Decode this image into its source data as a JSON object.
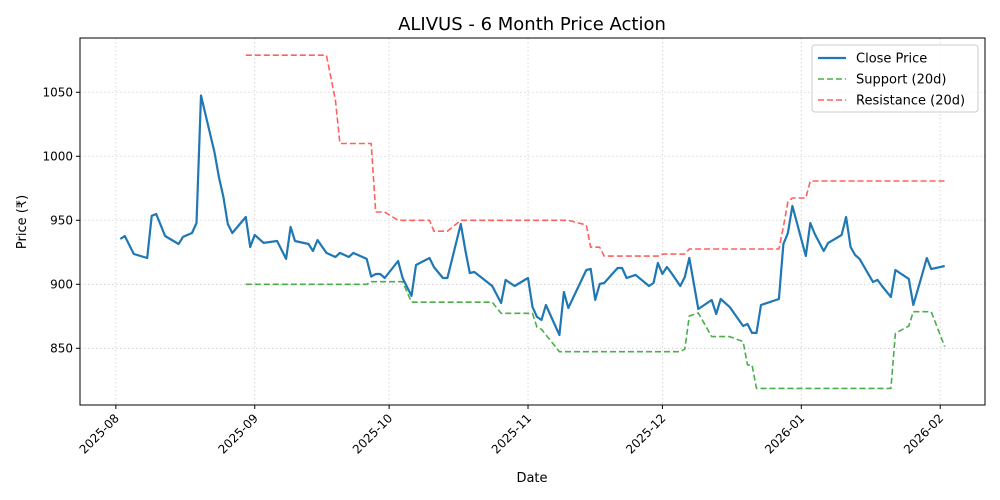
{
  "chart_data": {
    "type": "line",
    "title": "ALIVUS - 6 Month Price Action",
    "xlabel": "Date",
    "ylabel": "Price (₹)",
    "xlim": [
      "2025-07-24",
      "2026-02-11"
    ],
    "ylim": [
      805.7,
      1092.4
    ],
    "x_ticks": [
      "2025-08",
      "2025-09",
      "2025-10",
      "2025-11",
      "2025-12",
      "2026-01",
      "2026-02"
    ],
    "y_ticks": [
      850,
      900,
      950,
      1000,
      1050
    ],
    "grid": true,
    "legend_position": "top-right",
    "series": [
      {
        "name": "Close Price",
        "color": "#1f77b4",
        "style": "solid",
        "points": [
          [
            "2025-08-02",
            935.4
          ],
          [
            "2025-08-03",
            937.7
          ],
          [
            "2025-08-05",
            923.7
          ],
          [
            "2025-08-08",
            920.5
          ],
          [
            "2025-08-09",
            953.4
          ],
          [
            "2025-08-10",
            954.9
          ],
          [
            "2025-08-12",
            937.7
          ],
          [
            "2025-08-15",
            931.5
          ],
          [
            "2025-08-16",
            937.0
          ],
          [
            "2025-08-18",
            940.1
          ],
          [
            "2025-08-19",
            947.9
          ],
          [
            "2025-08-20",
            1047.5
          ],
          [
            "2025-08-23",
            1003.4
          ],
          [
            "2025-08-24",
            983.8
          ],
          [
            "2025-08-25",
            968.2
          ],
          [
            "2025-08-26",
            947.1
          ],
          [
            "2025-08-27",
            940.1
          ],
          [
            "2025-08-30",
            952.6
          ],
          [
            "2025-08-31",
            929.1
          ],
          [
            "2025-09-01",
            938.5
          ],
          [
            "2025-09-03",
            932.3
          ],
          [
            "2025-09-06",
            933.8
          ],
          [
            "2025-09-08",
            919.8
          ],
          [
            "2025-09-09",
            944.8
          ],
          [
            "2025-09-10",
            933.8
          ],
          [
            "2025-09-13",
            931.5
          ],
          [
            "2025-09-14",
            926.0
          ],
          [
            "2025-09-15",
            934.6
          ],
          [
            "2025-09-17",
            924.5
          ],
          [
            "2025-09-19",
            921.3
          ],
          [
            "2025-09-20",
            924.5
          ],
          [
            "2025-09-22",
            921.3
          ],
          [
            "2025-09-23",
            924.5
          ],
          [
            "2025-09-26",
            919.8
          ],
          [
            "2025-09-27",
            906.0
          ],
          [
            "2025-09-28",
            908.0
          ],
          [
            "2025-09-29",
            908.0
          ],
          [
            "2025-09-30",
            904.9
          ],
          [
            "2025-10-03",
            918.2
          ],
          [
            "2025-10-04",
            904.9
          ],
          [
            "2025-10-06",
            890.9
          ],
          [
            "2025-10-07",
            915.1
          ],
          [
            "2025-10-10",
            920.5
          ],
          [
            "2025-10-11",
            913.5
          ],
          [
            "2025-10-13",
            904.9
          ],
          [
            "2025-10-14",
            904.9
          ],
          [
            "2025-10-17",
            947.1
          ],
          [
            "2025-10-18",
            926.8
          ],
          [
            "2025-10-19",
            908.8
          ],
          [
            "2025-10-20",
            909.6
          ],
          [
            "2025-10-22",
            904.2
          ],
          [
            "2025-10-24",
            898.7
          ],
          [
            "2025-10-26",
            885.4
          ],
          [
            "2025-10-27",
            903.4
          ],
          [
            "2025-10-29",
            898.7
          ],
          [
            "2025-11-01",
            904.9
          ],
          [
            "2025-11-02",
            882.3
          ],
          [
            "2025-11-03",
            874.5
          ],
          [
            "2025-11-04",
            872.1
          ],
          [
            "2025-11-05",
            883.8
          ],
          [
            "2025-11-08",
            860.4
          ],
          [
            "2025-11-09",
            894.0
          ],
          [
            "2025-11-10",
            881.5
          ],
          [
            "2025-11-14",
            911.2
          ],
          [
            "2025-11-15",
            912.0
          ],
          [
            "2025-11-16",
            887.8
          ],
          [
            "2025-11-17",
            900.2
          ],
          [
            "2025-11-18",
            901.0
          ],
          [
            "2025-11-21",
            912.7
          ],
          [
            "2025-11-22",
            912.7
          ],
          [
            "2025-11-23",
            904.9
          ],
          [
            "2025-11-25",
            907.3
          ],
          [
            "2025-11-28",
            898.7
          ],
          [
            "2025-11-29",
            901.0
          ],
          [
            "2025-11-30",
            916.6
          ],
          [
            "2025-12-01",
            908.0
          ],
          [
            "2025-12-02",
            913.5
          ],
          [
            "2025-12-03",
            908.8
          ],
          [
            "2025-12-05",
            898.7
          ],
          [
            "2025-12-06",
            905.7
          ],
          [
            "2025-12-07",
            920.5
          ],
          [
            "2025-12-09",
            880.7
          ],
          [
            "2025-12-12",
            887.7
          ],
          [
            "2025-12-13",
            876.8
          ],
          [
            "2025-12-14",
            888.5
          ],
          [
            "2025-12-16",
            882.3
          ],
          [
            "2025-12-19",
            867.4
          ],
          [
            "2025-12-20",
            869.0
          ],
          [
            "2025-12-21",
            862.0
          ],
          [
            "2025-12-22",
            862.0
          ],
          [
            "2025-12-23",
            883.8
          ],
          [
            "2025-12-27",
            888.5
          ],
          [
            "2025-12-28",
            931.5
          ],
          [
            "2025-12-29",
            940.1
          ],
          [
            "2025-12-30",
            961.2
          ],
          [
            "2026-01-02",
            922.1
          ],
          [
            "2026-01-03",
            947.9
          ],
          [
            "2026-01-04",
            939.3
          ],
          [
            "2026-01-06",
            926.0
          ],
          [
            "2026-01-07",
            932.3
          ],
          [
            "2026-01-10",
            938.5
          ],
          [
            "2026-01-11",
            952.6
          ],
          [
            "2026-01-12",
            929.1
          ],
          [
            "2026-01-13",
            922.9
          ],
          [
            "2026-01-14",
            919.8
          ],
          [
            "2026-01-17",
            901.8
          ],
          [
            "2026-01-18",
            903.4
          ],
          [
            "2026-01-19",
            898.7
          ],
          [
            "2026-01-21",
            890.1
          ],
          [
            "2026-01-22",
            911.2
          ],
          [
            "2026-01-25",
            904.2
          ],
          [
            "2026-01-26",
            883.8
          ],
          [
            "2026-01-28",
            908.0
          ],
          [
            "2026-01-29",
            920.5
          ],
          [
            "2026-01-30",
            911.9
          ],
          [
            "2026-02-02",
            914.3
          ]
        ]
      },
      {
        "name": "Support (20d)",
        "color": "#2ca02c",
        "style": "dashed",
        "points": [
          [
            "2025-08-30",
            900
          ],
          [
            "2025-09-26",
            900
          ],
          [
            "2025-09-27",
            902
          ],
          [
            "2025-10-04",
            902
          ],
          [
            "2025-10-06",
            886
          ],
          [
            "2025-10-24",
            886
          ],
          [
            "2025-10-26",
            877.3
          ],
          [
            "2025-11-02",
            877.3
          ],
          [
            "2025-11-03",
            866.5
          ],
          [
            "2025-11-04",
            864.8
          ],
          [
            "2025-11-08",
            847.3
          ],
          [
            "2025-12-05",
            847.3
          ],
          [
            "2025-12-06",
            849.4
          ],
          [
            "2025-12-07",
            875.2
          ],
          [
            "2025-12-09",
            877.6
          ],
          [
            "2025-12-12",
            859.1
          ],
          [
            "2025-12-16",
            859.1
          ],
          [
            "2025-12-19",
            855.2
          ],
          [
            "2025-12-20",
            837
          ],
          [
            "2025-12-21",
            837
          ],
          [
            "2025-12-22",
            818.7
          ],
          [
            "2026-01-21",
            818.7
          ],
          [
            "2026-01-22",
            861.7
          ],
          [
            "2026-01-25",
            867.4
          ],
          [
            "2026-01-26",
            878.6
          ],
          [
            "2026-01-30",
            878.6
          ],
          [
            "2026-02-02",
            851.3
          ]
        ]
      },
      {
        "name": "Resistance (20d)",
        "color": "#ff4444",
        "style": "dashed",
        "points": [
          [
            "2025-08-30",
            1079
          ],
          [
            "2025-09-17",
            1079
          ],
          [
            "2025-09-19",
            1044
          ],
          [
            "2025-09-20",
            1010
          ],
          [
            "2025-09-27",
            1010
          ],
          [
            "2025-09-28",
            956.5
          ],
          [
            "2025-09-30",
            956.5
          ],
          [
            "2025-10-03",
            950
          ],
          [
            "2025-10-10",
            950
          ],
          [
            "2025-10-11",
            941.5
          ],
          [
            "2025-10-14",
            941.5
          ],
          [
            "2025-10-17",
            950
          ],
          [
            "2025-11-10",
            950
          ],
          [
            "2025-11-14",
            946.3
          ],
          [
            "2025-11-15",
            929
          ],
          [
            "2025-11-17",
            929
          ],
          [
            "2025-11-18",
            922
          ],
          [
            "2025-11-30",
            922
          ],
          [
            "2025-12-01",
            923.6
          ],
          [
            "2025-12-06",
            923.6
          ],
          [
            "2025-12-07",
            927.6
          ],
          [
            "2025-12-27",
            927.6
          ],
          [
            "2025-12-28",
            945
          ],
          [
            "2025-12-29",
            964.5
          ],
          [
            "2025-12-30",
            967.4
          ],
          [
            "2026-01-02",
            967.4
          ],
          [
            "2026-01-03",
            980.7
          ],
          [
            "2026-02-02",
            980.7
          ]
        ]
      }
    ]
  }
}
